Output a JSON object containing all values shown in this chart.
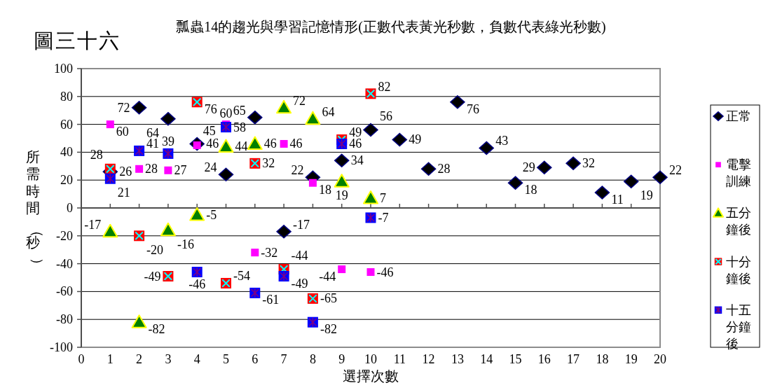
{
  "chart_data": {
    "type": "scatter",
    "title": "瓢蟲14的趨光與學習記憶情形(正數代表黃光秒數，負數代表綠光秒數)",
    "annotations": [
      "圖三十六"
    ],
    "xlabel": "選擇次數",
    "ylabel": "所需時間（秒）",
    "xlim": [
      0,
      20
    ],
    "xticks": [
      0,
      1,
      2,
      3,
      4,
      5,
      6,
      7,
      8,
      9,
      10,
      11,
      12,
      13,
      14,
      15,
      16,
      17,
      18,
      19,
      20
    ],
    "ylim": [
      -100,
      100
    ],
    "yticks": [
      -100,
      -80,
      -60,
      -40,
      -20,
      0,
      20,
      40,
      60,
      80,
      100
    ],
    "grid": "y",
    "legend": "right",
    "data_labels": true,
    "series": [
      {
        "name": "正常",
        "color": "#000000",
        "marker": "diamond",
        "x": [
          1,
          2,
          3,
          4,
          5,
          6,
          7,
          8,
          9,
          10,
          11,
          12,
          13,
          14,
          15,
          16,
          17,
          18,
          19,
          20
        ],
        "values": [
          26,
          72,
          64,
          46,
          24,
          65,
          -17,
          22,
          34,
          56,
          49,
          28,
          76,
          43,
          18,
          29,
          32,
          11,
          19,
          22
        ]
      },
      {
        "name": "電擊訓練",
        "color": "#ff00ff",
        "marker": "square",
        "x": [
          1,
          2,
          3,
          4,
          5,
          6,
          7,
          8,
          9,
          10
        ],
        "values": [
          60,
          28,
          27,
          45,
          60,
          -32,
          46,
          18,
          -44,
          -46
        ]
      },
      {
        "name": "五分鐘後",
        "color": "#008000",
        "marker": "triangle",
        "x": [
          1,
          2,
          3,
          4,
          5,
          6,
          7,
          8,
          9,
          10
        ],
        "values": [
          -17,
          -82,
          -16,
          -5,
          44,
          46,
          72,
          64,
          19,
          7
        ]
      },
      {
        "name": "十分鐘後",
        "color": "#ff0000",
        "marker": "square",
        "x": [
          1,
          2,
          3,
          4,
          5,
          6,
          7,
          8,
          9,
          10
        ],
        "values": [
          28,
          -20,
          -49,
          76,
          -54,
          32,
          -44,
          -65,
          49,
          82
        ]
      },
      {
        "name": "十五分鐘後",
        "color": "#0000ff",
        "marker": "square",
        "x": [
          1,
          2,
          3,
          4,
          5,
          6,
          7,
          8,
          9,
          10
        ],
        "values": [
          21,
          41,
          39,
          -46,
          58,
          -61,
          -49,
          -82,
          46,
          -7
        ]
      }
    ]
  }
}
